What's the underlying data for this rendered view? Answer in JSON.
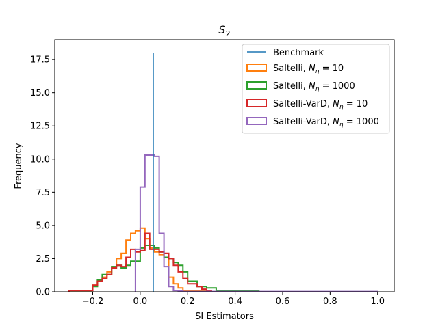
{
  "chart_data": {
    "type": "histogram",
    "title": "S",
    "title_subscript": "2",
    "xlabel": "SI Estimators",
    "ylabel": "Frequency",
    "xlim": [
      -0.36,
      1.07
    ],
    "ylim": [
      0,
      19
    ],
    "xticks": [
      -0.2,
      0.0,
      0.2,
      0.4,
      0.6,
      0.8,
      1.0
    ],
    "xtick_labels": [
      "−0.2",
      "0.0",
      "0.2",
      "0.4",
      "0.6",
      "0.8",
      "1.0"
    ],
    "yticks": [
      0.0,
      2.5,
      5.0,
      7.5,
      10.0,
      12.5,
      15.0,
      17.5
    ],
    "ytick_labels": [
      "0.0",
      "2.5",
      "5.0",
      "7.5",
      "10.0",
      "12.5",
      "15.0",
      "17.5"
    ],
    "legend_position": "top-right",
    "benchmark": {
      "name": "Benchmark",
      "x": 0.055,
      "height": 18.0,
      "color": "#1f77b4"
    },
    "series": [
      {
        "name": "Saltelli, ",
        "math": "N",
        "math_sub": "η",
        "math_rest": " = 10",
        "color": "#ff7f0e",
        "edges": [
          -0.3,
          -0.2,
          -0.18,
          -0.16,
          -0.14,
          -0.12,
          -0.1,
          -0.08,
          -0.06,
          -0.04,
          -0.02,
          0.0,
          0.02,
          0.04,
          0.06,
          0.08,
          0.1,
          0.12,
          0.14,
          0.16,
          0.18,
          0.2,
          0.3
        ],
        "values": [
          0.1,
          0.5,
          0.8,
          1.1,
          1.5,
          1.9,
          2.5,
          2.9,
          3.9,
          4.4,
          4.6,
          4.8,
          4.0,
          3.3,
          3.0,
          2.8,
          2.6,
          1.1,
          0.6,
          0.3,
          0.1,
          0.05
        ]
      },
      {
        "name": "Saltelli, ",
        "math": "N",
        "math_sub": "η",
        "math_rest": " = 1000",
        "color": "#2ca02c",
        "edges": [
          -0.3,
          -0.2,
          -0.18,
          -0.16,
          -0.14,
          -0.12,
          -0.1,
          -0.08,
          -0.06,
          -0.04,
          -0.02,
          0.0,
          0.02,
          0.04,
          0.06,
          0.08,
          0.1,
          0.12,
          0.14,
          0.16,
          0.18,
          0.2,
          0.22,
          0.24,
          0.26,
          0.28,
          0.3,
          0.32,
          0.34,
          0.36,
          0.38,
          0.4,
          0.5
        ],
        "values": [
          0.1,
          0.4,
          0.9,
          1.3,
          1.3,
          1.9,
          2.0,
          1.8,
          2.0,
          2.3,
          2.3,
          3.3,
          3.5,
          3.5,
          3.3,
          3.0,
          2.6,
          2.5,
          2.2,
          2.0,
          1.5,
          0.8,
          0.8,
          0.4,
          0.4,
          0.3,
          0.3,
          0.1,
          0.05,
          0.05,
          0.05,
          0.05
        ]
      },
      {
        "name": "Saltelli-VarD, ",
        "math": "N",
        "math_sub": "η",
        "math_rest": " = 10",
        "color": "#d62728",
        "edges": [
          -0.3,
          -0.2,
          -0.18,
          -0.16,
          -0.14,
          -0.12,
          -0.1,
          -0.08,
          -0.06,
          -0.04,
          -0.02,
          0.0,
          0.02,
          0.04,
          0.06,
          0.08,
          0.1,
          0.12,
          0.14,
          0.16,
          0.18,
          0.2,
          0.22,
          0.24,
          0.26,
          0.28,
          0.3
        ],
        "values": [
          0.1,
          0.5,
          0.8,
          1.0,
          1.3,
          1.8,
          2.0,
          1.9,
          2.6,
          3.2,
          3.0,
          3.1,
          4.4,
          3.2,
          3.2,
          3.0,
          2.9,
          2.5,
          2.0,
          1.5,
          1.0,
          0.6,
          0.6,
          0.4,
          0.2,
          0.1
        ]
      },
      {
        "name": "Saltelli-VarD, ",
        "math": "N",
        "math_sub": "η",
        "math_rest": " = 1000",
        "color": "#9467bd",
        "edges": [
          -0.02,
          0.0,
          0.02,
          0.04,
          0.06,
          0.08,
          0.1,
          0.12,
          0.14,
          0.16,
          0.18,
          1.0
        ],
        "values": [
          3.2,
          7.9,
          10.3,
          10.3,
          10.2,
          4.4,
          1.9,
          0.4,
          0.1,
          0.05,
          0.02
        ]
      }
    ]
  }
}
